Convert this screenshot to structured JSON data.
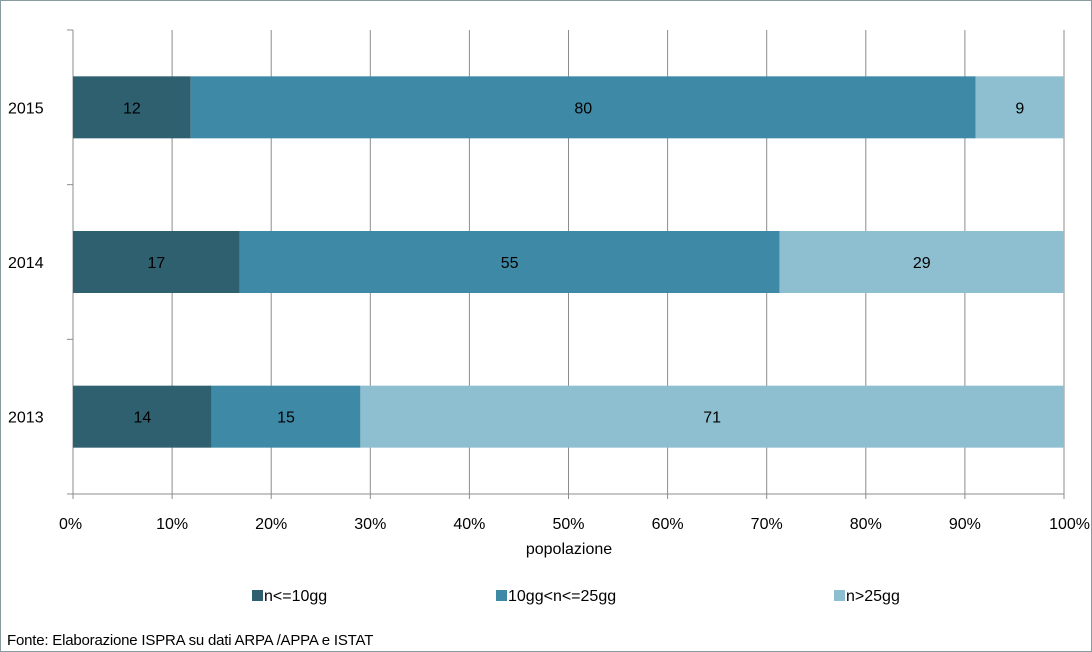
{
  "chart_data": {
    "type": "bar",
    "orientation": "horizontal",
    "stacked": "percent",
    "categories": [
      "2015",
      "2014",
      "2013"
    ],
    "series": [
      {
        "name": "n<=10gg",
        "values": [
          12,
          17,
          14
        ],
        "color": "#2e6070"
      },
      {
        "name": "10gg<n<=25gg",
        "values": [
          80,
          55,
          15
        ],
        "color": "#3e8aa6"
      },
      {
        "name": "n>25gg",
        "values": [
          9,
          29,
          71
        ],
        "color": "#8ebfd1"
      }
    ],
    "xlabel": "popolazione",
    "x_ticks": [
      "0%",
      "10%",
      "20%",
      "30%",
      "40%",
      "50%",
      "60%",
      "70%",
      "80%",
      "90%",
      "100%"
    ],
    "xlim": [
      0,
      100
    ],
    "grid": true,
    "legend_position": "bottom"
  },
  "source": "Fonte: Elaborazione ISPRA su dati ARPA /APPA e ISTAT"
}
